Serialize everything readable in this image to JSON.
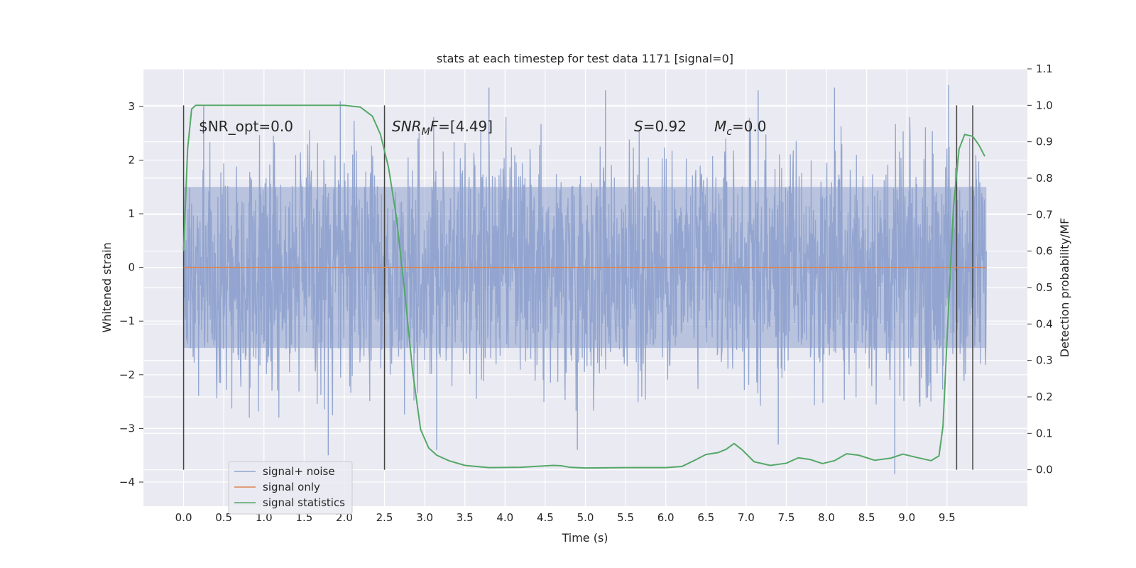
{
  "chart_data": {
    "type": "line",
    "title": "stats at each timestep for test data 1171 [signal=0]",
    "xlabel": "Time (s)",
    "ylabel": "Whitened strain",
    "y2label": "Detection probability/MF",
    "xlim": [
      -0.5,
      10.5
    ],
    "ylim": [
      -4.45,
      3.7
    ],
    "y2lim": [
      -0.1,
      1.1
    ],
    "x_ticks": [
      "0.0",
      "0.5",
      "1.0",
      "1.5",
      "2.0",
      "2.5",
      "3.0",
      "3.5",
      "4.0",
      "4.5",
      "5.0",
      "5.5",
      "6.0",
      "6.5",
      "7.0",
      "7.5",
      "8.0",
      "8.5",
      "9.0",
      "9.5"
    ],
    "y_ticks": [
      "3",
      "2",
      "1",
      "0",
      "−1",
      "−2",
      "−3",
      "−4"
    ],
    "y2_ticks": [
      "1.1",
      "1.0",
      "0.9",
      "0.8",
      "0.7",
      "0.6",
      "0.5",
      "0.4",
      "0.3",
      "0.2",
      "0.1",
      "0.0"
    ],
    "grid": true,
    "legend_position": "lower-left",
    "annotations": [
      "$NR_opt=0.0",
      "SNR_MF=[4.49]",
      "S=0.92",
      "M_c=0.0"
    ],
    "vertical_markers": [
      0.0,
      2.5,
      9.62,
      9.82
    ],
    "series": [
      {
        "name": "signal+ noise",
        "color": "#8fa3cd",
        "axis": "left",
        "x_range": [
          0.0,
          9.99
        ],
        "typical_range": [
          -1.5,
          1.5
        ],
        "peak_points": [
          [
            0.25,
            3.0
          ],
          [
            1.95,
            3.1
          ],
          [
            3.8,
            3.35
          ],
          [
            5.25,
            3.3
          ],
          [
            7.15,
            3.3
          ],
          [
            8.1,
            3.35
          ],
          [
            9.52,
            3.4
          ],
          [
            1.8,
            -3.5
          ],
          [
            4.9,
            -3.4
          ],
          [
            8.85,
            -3.85
          ],
          [
            3.15,
            -3.4
          ],
          [
            7.4,
            -3.3
          ]
        ]
      },
      {
        "name": "signal only",
        "color": "#dd8452",
        "axis": "left",
        "x": [
          0.0,
          9.99
        ],
        "y": [
          0.0,
          0.0
        ]
      },
      {
        "name": "signal statistics",
        "color": "#55a868",
        "axis": "right",
        "x": [
          0.0,
          0.05,
          0.1,
          0.15,
          0.3,
          0.5,
          1.0,
          1.5,
          2.0,
          2.2,
          2.35,
          2.45,
          2.55,
          2.65,
          2.75,
          2.85,
          2.95,
          3.05,
          3.15,
          3.3,
          3.5,
          3.8,
          4.2,
          4.6,
          4.7,
          4.8,
          5.0,
          5.5,
          6.0,
          6.2,
          6.35,
          6.5,
          6.65,
          6.75,
          6.85,
          6.95,
          7.1,
          7.3,
          7.5,
          7.65,
          7.8,
          7.95,
          8.1,
          8.25,
          8.4,
          8.6,
          8.8,
          8.95,
          9.1,
          9.3,
          9.4,
          9.45,
          9.52,
          9.58,
          9.65,
          9.72,
          9.82,
          9.9,
          9.97
        ],
        "y": [
          0.6,
          0.88,
          0.99,
          1.0,
          1.0,
          1.0,
          1.0,
          1.0,
          1.0,
          0.995,
          0.97,
          0.92,
          0.83,
          0.69,
          0.49,
          0.27,
          0.11,
          0.06,
          0.04,
          0.025,
          0.012,
          0.006,
          0.007,
          0.012,
          0.011,
          0.007,
          0.005,
          0.006,
          0.006,
          0.009,
          0.025,
          0.042,
          0.047,
          0.056,
          0.072,
          0.055,
          0.022,
          0.012,
          0.018,
          0.033,
          0.028,
          0.017,
          0.025,
          0.044,
          0.04,
          0.026,
          0.032,
          0.043,
          0.035,
          0.025,
          0.038,
          0.12,
          0.45,
          0.72,
          0.88,
          0.92,
          0.915,
          0.89,
          0.86
        ]
      }
    ]
  }
}
